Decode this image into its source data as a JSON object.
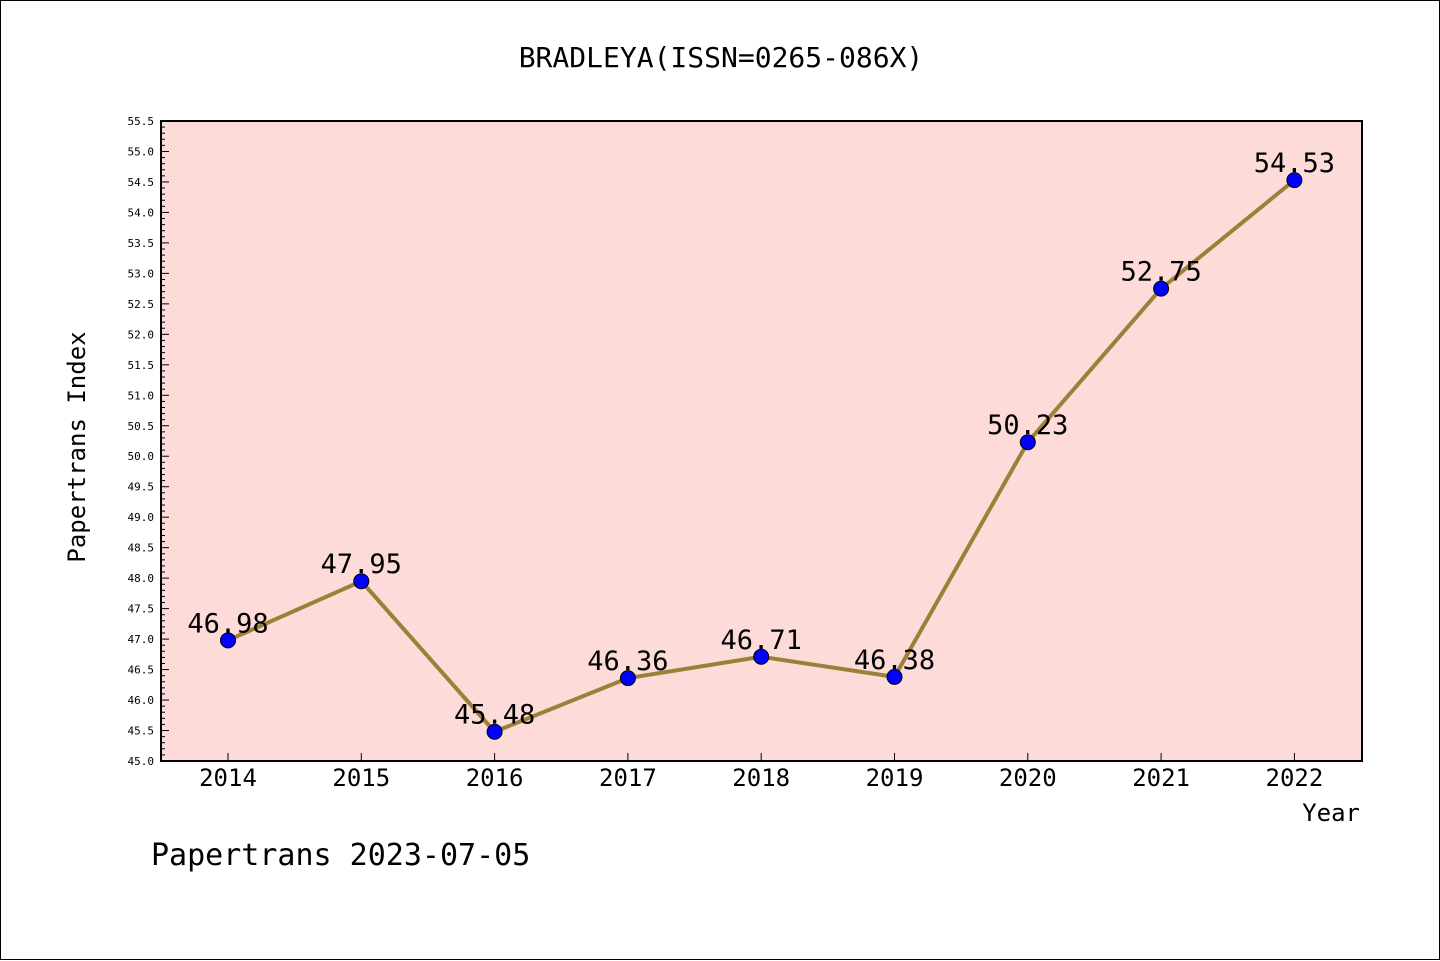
{
  "chart_data": {
    "type": "line",
    "title": "BRADLEYA(ISSN=0265-086X)",
    "xlabel": "Year",
    "ylabel": "Papertrans Index",
    "categories": [
      "2014",
      "2015",
      "2016",
      "2017",
      "2018",
      "2019",
      "2020",
      "2021",
      "2022"
    ],
    "values": [
      46.98,
      47.95,
      45.48,
      46.36,
      46.71,
      46.38,
      50.23,
      52.75,
      54.53
    ],
    "data_labels": [
      "46.98",
      "47.95",
      "45.48",
      "46.36",
      "46.71",
      "46.38",
      "50.23",
      "52.75",
      "54.53"
    ],
    "ylim": [
      45.0,
      55.5
    ],
    "yticks": [
      "45.0",
      "45.5",
      "46.0",
      "46.5",
      "47.0",
      "47.5",
      "48.0",
      "48.5",
      "49.0",
      "49.5",
      "50.0",
      "50.5",
      "51.0",
      "51.5",
      "52.0",
      "52.5",
      "53.0",
      "53.5",
      "54.0",
      "54.5",
      "55.0",
      "55.5"
    ],
    "grid": false,
    "footer": "Papertrans 2023-07-05",
    "colors": {
      "plot_background": "#fddbd9",
      "line": "#9a8038",
      "marker": "#0000ff"
    }
  }
}
